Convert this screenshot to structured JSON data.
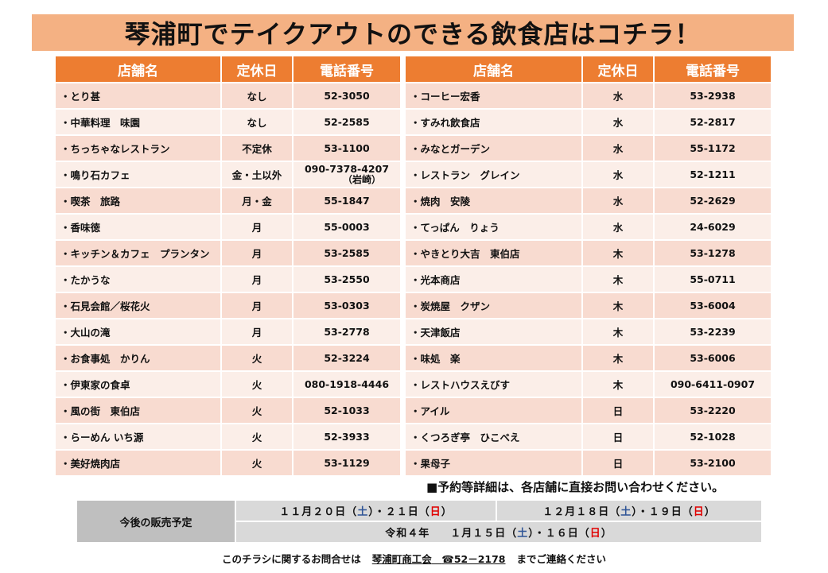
{
  "title": "琴浦町でテイクアウトのできる飲食店はコチラ！",
  "headers": {
    "name": "店舗名",
    "day": "定休日",
    "tel": "電話番号"
  },
  "left": [
    {
      "name": "・とり甚",
      "day": "なし",
      "tel": "52-3050"
    },
    {
      "name": "・中華料理　味園",
      "day": "なし",
      "tel": "52-2585"
    },
    {
      "name": "・ちっちゃなレストラン",
      "day": "不定休",
      "tel": "53-1100"
    },
    {
      "name": "・鳴り石カフェ",
      "day": "金・土以外",
      "tel": "090-7378-4207",
      "tel2": "（岩崎）"
    },
    {
      "name": "・喫茶　旅路",
      "day": "月・金",
      "tel": "55-1847"
    },
    {
      "name": "・香味徳",
      "day": "月",
      "tel": "55-0003"
    },
    {
      "name": "・キッチン＆カフェ　プランタン",
      "day": "月",
      "tel": "53-2585"
    },
    {
      "name": "・たかうな",
      "day": "月",
      "tel": "53-2550"
    },
    {
      "name": "・石見会館／桜花火",
      "day": "月",
      "tel": "53-0303"
    },
    {
      "name": "・大山の滝",
      "day": "月",
      "tel": "53-2778"
    },
    {
      "name": "・お食事処　かりん",
      "day": "火",
      "tel": "52-3224"
    },
    {
      "name": "・伊東家の食卓",
      "day": "火",
      "tel": "080-1918-4446"
    },
    {
      "name": "・風の街　東伯店",
      "day": "火",
      "tel": "52-1033"
    },
    {
      "name": "・らーめん いち源",
      "day": "火",
      "tel": "52-3933"
    },
    {
      "name": "・美好焼肉店",
      "day": "火",
      "tel": "53-1129"
    }
  ],
  "right": [
    {
      "name": "・コーヒー宏香",
      "day": "水",
      "tel": "53-2938"
    },
    {
      "name": "・すみれ飲食店",
      "day": "水",
      "tel": "52-2817"
    },
    {
      "name": "・みなとガーデン",
      "day": "水",
      "tel": "55-1172"
    },
    {
      "name": "・レストラン　グレイン",
      "day": "水",
      "tel": "52-1211"
    },
    {
      "name": "・焼肉　安陵",
      "day": "水",
      "tel": "52-2629"
    },
    {
      "name": "・てっぱん　りょう",
      "day": "水",
      "tel": "24-6029"
    },
    {
      "name": "・やきとり大吉　東伯店",
      "day": "木",
      "tel": "53-1278"
    },
    {
      "name": "・光本商店",
      "day": "木",
      "tel": "55-0711"
    },
    {
      "name": "・炭焼屋　クザン",
      "day": "木",
      "tel": "53-6004"
    },
    {
      "name": "・天津飯店",
      "day": "木",
      "tel": "53-2239"
    },
    {
      "name": "・味処　楽",
      "day": "木",
      "tel": "53-6006"
    },
    {
      "name": "・レストハウスえびす",
      "day": "木",
      "tel": "090-6411-0907"
    },
    {
      "name": "・アイル",
      "day": "日",
      "tel": "53-2220"
    },
    {
      "name": "・くつろぎ亭　ひこべえ",
      "day": "日",
      "tel": "52-1028"
    },
    {
      "name": "・果母子",
      "day": "日",
      "tel": "53-2100"
    }
  ],
  "note": "■予約等詳細は、各店舗に直接お問い合わせください。",
  "schedule": {
    "label": "今後の販売予定",
    "d1": {
      "a": "１１月２０日（",
      "sat": "土",
      "b": "）・２１日（",
      "sun": "日",
      "c": "）"
    },
    "d2": {
      "a": "１２月１８日（",
      "sat": "土",
      "b": "）・１９日（",
      "sun": "日",
      "c": "）"
    },
    "d3": {
      "pre": "令和４年",
      "a": "１月１５日（",
      "sat": "土",
      "b": "）・１６日（",
      "sun": "日",
      "c": "）"
    }
  },
  "footer": {
    "text1": "このチラシに関するお問合せは",
    "org": "琴浦町商工会",
    "tel": "☎52－2178",
    "text2": "までご連絡ください"
  }
}
